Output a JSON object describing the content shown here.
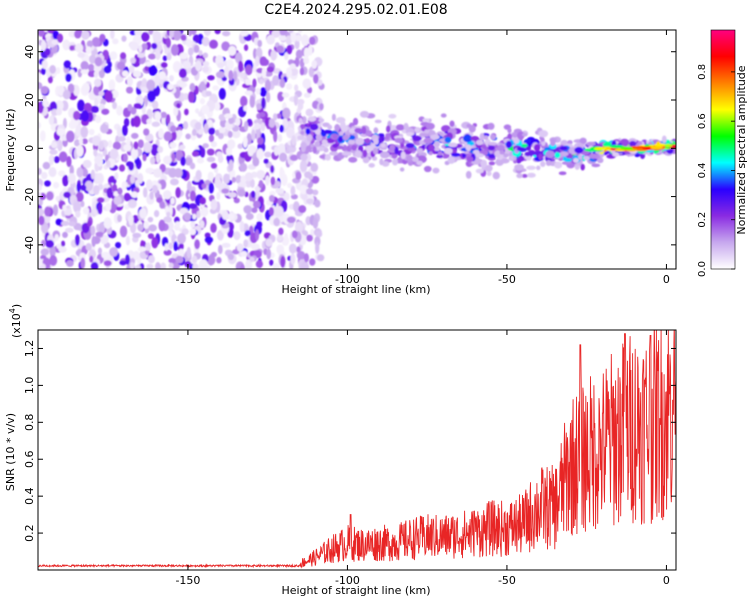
{
  "title": "C2E4.2024.295.02.01.E08",
  "chart_data": [
    {
      "type": "heatmap",
      "xlabel": "Height of straight line (km)",
      "ylabel": "Frequency (Hz)",
      "xlim": [
        -197,
        3
      ],
      "ylim": [
        -50,
        49
      ],
      "xticks": [
        -150,
        -100,
        -50,
        0
      ],
      "yticks": [
        -40,
        -20,
        0,
        20,
        40
      ],
      "colorbar": {
        "label": "Normalized spectral amplitude",
        "range": [
          0,
          0.97
        ],
        "ticks": [
          "0.0",
          "0.2",
          "0.4",
          "0.6",
          "0.8"
        ],
        "tick_values": [
          0.0,
          0.2,
          0.4,
          0.6,
          0.8
        ],
        "colors": [
          "#ffffff",
          "#c7a8ee",
          "#8a2be2",
          "#2a00ff",
          "#00ffff",
          "#00ff00",
          "#ffff00",
          "#ff8000",
          "#ff0000",
          "#ff0080"
        ]
      },
      "ridge": {
        "x": [
          -115,
          -100,
          -80,
          -60,
          -50,
          -40,
          -30,
          -20,
          -10,
          3
        ],
        "frequency": [
          6,
          4,
          2,
          1,
          0,
          0,
          -3,
          0,
          0,
          1
        ],
        "peak_amplitude": [
          0.35,
          0.4,
          0.45,
          0.5,
          0.55,
          0.55,
          0.6,
          0.8,
          0.8,
          0.9
        ]
      },
      "noise_region_x": [
        -197,
        -112
      ]
    },
    {
      "type": "line",
      "xlabel": "Height of straight line (km)",
      "ylabel": "SNR (10 * v/v)",
      "y_multiplier": "(x10",
      "y_multiplier_exp": "4",
      "xlim": [
        -197,
        3
      ],
      "ylim": [
        0,
        1.3
      ],
      "xticks": [
        -150,
        -100,
        -50,
        0
      ],
      "yticks": [
        0.2,
        0.4,
        0.6,
        0.8,
        1.0,
        1.2
      ],
      "ytick_labels": [
        "0.2",
        "0.4",
        "0.6",
        "0.8",
        "1.0",
        "1.2"
      ],
      "color": "#e82525",
      "series": [
        {
          "x": [
            -197,
            -180,
            -160,
            -140,
            -120,
            -115,
            -110,
            -105,
            -100,
            -95,
            -90,
            -85,
            -80,
            -75,
            -70,
            -65,
            -60,
            -55,
            -50,
            -45,
            -40,
            -35,
            -30,
            -25,
            -20,
            -15,
            -10,
            -5,
            0,
            3
          ],
          "values": [
            0.02,
            0.02,
            0.02,
            0.02,
            0.02,
            0.03,
            0.06,
            0.1,
            0.13,
            0.12,
            0.13,
            0.13,
            0.15,
            0.16,
            0.16,
            0.17,
            0.18,
            0.2,
            0.2,
            0.22,
            0.3,
            0.3,
            0.5,
            0.55,
            0.6,
            0.65,
            0.7,
            0.7,
            0.75,
            0.85
          ],
          "peaks": [
            [
              -99,
              0.3
            ],
            [
              -88,
              0.22
            ],
            [
              -60,
              0.28
            ],
            [
              -42,
              0.35
            ],
            [
              -27,
              1.22
            ],
            [
              -20,
              0.85
            ],
            [
              -13,
              1.28
            ],
            [
              -5,
              1.27
            ],
            [
              -2,
              0.82
            ],
            [
              2,
              0.92
            ]
          ]
        }
      ]
    }
  ]
}
